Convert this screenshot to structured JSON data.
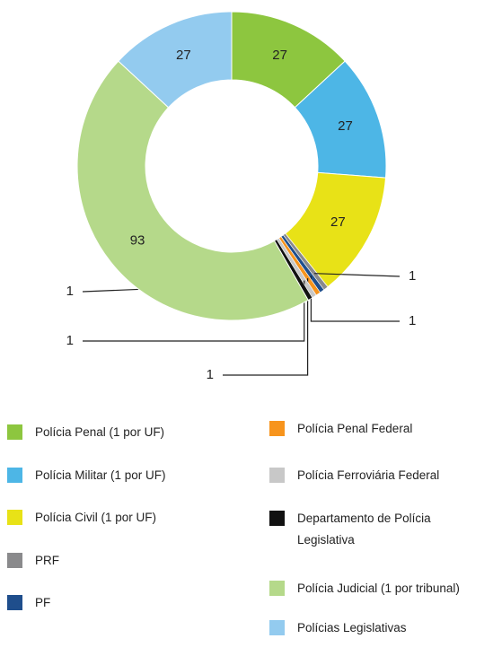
{
  "chart_data": {
    "type": "donut",
    "categories": [
      "Polícia Penal (1 por UF)",
      "Polícia Militar (1 por UF)",
      "Polícia Civil (1 por UF)",
      "PRF",
      "PF",
      "Polícia Penal Federal",
      "Polícia Ferroviária Federal",
      "Departamento de Polícia Legislativa",
      "Polícia Judicial (1 por tribunal)",
      "Polícias Legislativas"
    ],
    "values": [
      27,
      27,
      27,
      1,
      1,
      1,
      1,
      1,
      93,
      27
    ],
    "colors": [
      "#8dc63f",
      "#4db6e6",
      "#e8e217",
      "#8a8a8c",
      "#1f4e8c",
      "#f7941d",
      "#c8c8c8",
      "#111111",
      "#b5d98a",
      "#93cbef"
    ]
  }
}
